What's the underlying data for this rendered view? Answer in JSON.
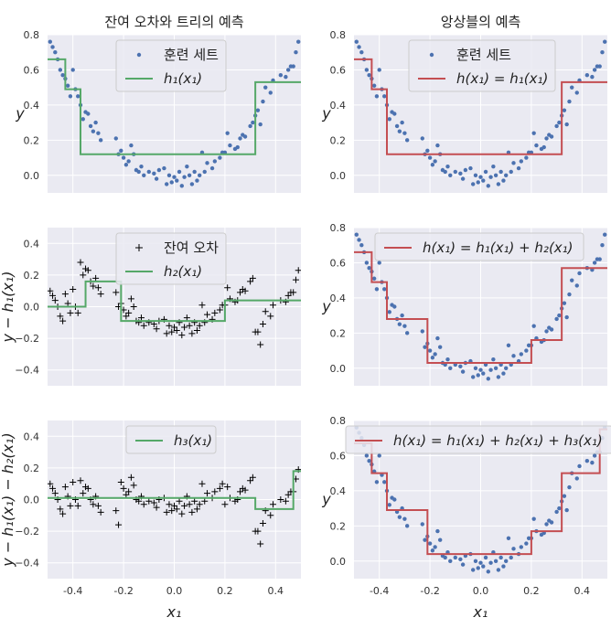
{
  "chart_data": [
    {
      "type": "scatter+step",
      "title": "잔여 오차와 트리의 예측",
      "xlabel": "",
      "ylabel": "y",
      "xlim": [
        -0.5,
        0.5
      ],
      "ylim": [
        -0.1,
        0.8
      ],
      "xticks": [
        -0.4,
        -0.2,
        0.0,
        0.2,
        0.4
      ],
      "yticks": [
        0.0,
        0.2,
        0.4,
        0.6,
        0.8
      ],
      "xtick_labels": [
        "-0.4",
        "-0.2",
        "0.0",
        "0.2",
        "0.4"
      ],
      "ytick_labels": [
        "0.0",
        "0.2",
        "0.4",
        "0.6",
        "0.8"
      ],
      "show_xtick_labels": false,
      "grid": true,
      "legend_position": "top-center",
      "points_style": "dot",
      "points_color": "#4c72b0",
      "points_source": "train",
      "line_color": "#55a868",
      "line_steps": [
        [
          -0.5,
          0.66
        ],
        [
          -0.43,
          0.49
        ],
        [
          -0.37,
          0.12
        ],
        [
          0.32,
          0.53
        ],
        [
          0.5,
          0.53
        ]
      ],
      "legend": [
        {
          "kind": "marker",
          "label": "훈련 세트"
        },
        {
          "kind": "line",
          "label": "h₁(x₁)"
        }
      ]
    },
    {
      "type": "scatter+step",
      "title": "앙상블의 예측",
      "xlabel": "",
      "ylabel": "y",
      "xlim": [
        -0.5,
        0.5
      ],
      "ylim": [
        -0.1,
        0.8
      ],
      "xticks": [
        -0.4,
        -0.2,
        0.0,
        0.2,
        0.4
      ],
      "yticks": [
        0.0,
        0.2,
        0.4,
        0.6,
        0.8
      ],
      "xtick_labels": [
        "-0.4",
        "-0.2",
        "0.0",
        "0.2",
        "0.4"
      ],
      "ytick_labels": [
        "0.0",
        "0.2",
        "0.4",
        "0.6",
        "0.8"
      ],
      "show_xtick_labels": false,
      "grid": true,
      "legend_position": "top-center",
      "points_style": "dot",
      "points_color": "#4c72b0",
      "points_source": "train",
      "line_color": "#c44e52",
      "line_steps": [
        [
          -0.5,
          0.66
        ],
        [
          -0.43,
          0.49
        ],
        [
          -0.37,
          0.12
        ],
        [
          0.32,
          0.53
        ],
        [
          0.5,
          0.53
        ]
      ],
      "legend": [
        {
          "kind": "marker",
          "label": "훈련 세트"
        },
        {
          "kind": "line",
          "label": "h(x₁) = h₁(x₁)"
        }
      ]
    },
    {
      "type": "scatter+step",
      "title": "",
      "xlabel": "",
      "ylabel": "y − h₁(x₁)",
      "xlim": [
        -0.5,
        0.5
      ],
      "ylim": [
        -0.5,
        0.5
      ],
      "xticks": [
        -0.4,
        -0.2,
        0.0,
        0.2,
        0.4
      ],
      "yticks": [
        -0.4,
        -0.2,
        0.0,
        0.2,
        0.4
      ],
      "xtick_labels": [
        "-0.4",
        "-0.2",
        "0.0",
        "0.2",
        "0.4"
      ],
      "ytick_labels": [
        "−0.4",
        "−0.2",
        "0.0",
        "0.2",
        "0.4"
      ],
      "show_xtick_labels": false,
      "grid": true,
      "legend_position": "top-center",
      "points_style": "plus",
      "points_color": "#000000",
      "points_source": "resid1",
      "line_color": "#55a868",
      "line_steps": [
        [
          -0.5,
          0.0
        ],
        [
          -0.35,
          0.16
        ],
        [
          -0.21,
          -0.09
        ],
        [
          0.2,
          0.04
        ],
        [
          0.5,
          0.04
        ]
      ],
      "legend": [
        {
          "kind": "plus",
          "label": "잔여 오차"
        },
        {
          "kind": "line",
          "label": "h₂(x₁)"
        }
      ]
    },
    {
      "type": "scatter+step",
      "title": "",
      "xlabel": "",
      "ylabel": "y",
      "xlim": [
        -0.5,
        0.5
      ],
      "ylim": [
        -0.1,
        0.8
      ],
      "xticks": [
        -0.4,
        -0.2,
        0.0,
        0.2,
        0.4
      ],
      "yticks": [
        0.0,
        0.2,
        0.4,
        0.6,
        0.8
      ],
      "xtick_labels": [
        "-0.4",
        "-0.2",
        "0.0",
        "0.2",
        "0.4"
      ],
      "ytick_labels": [
        "0.0",
        "0.2",
        "0.4",
        "0.6",
        "0.8"
      ],
      "show_xtick_labels": false,
      "grid": true,
      "legend_position": "top-center",
      "points_style": "dot",
      "points_color": "#4c72b0",
      "points_source": "train",
      "line_color": "#c44e52",
      "line_steps": [
        [
          -0.5,
          0.66
        ],
        [
          -0.43,
          0.49
        ],
        [
          -0.37,
          0.28
        ],
        [
          -0.21,
          0.03
        ],
        [
          0.2,
          0.16
        ],
        [
          0.32,
          0.57
        ],
        [
          0.5,
          0.57
        ]
      ],
      "legend": [
        {
          "kind": "line",
          "label": "h(x₁) = h₁(x₁) + h₂(x₁)"
        }
      ]
    },
    {
      "type": "scatter+step",
      "title": "",
      "xlabel": "x₁",
      "ylabel": "y − h₁(x₁) − h₂(x₁)",
      "xlim": [
        -0.5,
        0.5
      ],
      "ylim": [
        -0.5,
        0.5
      ],
      "xticks": [
        -0.4,
        -0.2,
        0.0,
        0.2,
        0.4
      ],
      "yticks": [
        -0.4,
        -0.2,
        0.0,
        0.2,
        0.4
      ],
      "xtick_labels": [
        "-0.4",
        "-0.2",
        "0.0",
        "0.2",
        "0.4"
      ],
      "ytick_labels": [
        "−0.4",
        "−0.2",
        "0.0",
        "0.2",
        "0.4"
      ],
      "show_xtick_labels": true,
      "grid": true,
      "legend_position": "top-center",
      "points_style": "plus",
      "points_color": "#000000",
      "points_source": "resid2",
      "line_color": "#55a868",
      "line_steps": [
        [
          -0.5,
          0.01
        ],
        [
          0.32,
          -0.06
        ],
        [
          0.47,
          0.18
        ],
        [
          0.5,
          0.18
        ]
      ],
      "legend": [
        {
          "kind": "line",
          "label": "h₃(x₁)"
        }
      ]
    },
    {
      "type": "scatter+step",
      "title": "",
      "xlabel": "x₁",
      "ylabel": "y",
      "xlim": [
        -0.5,
        0.5
      ],
      "ylim": [
        -0.1,
        0.8
      ],
      "xticks": [
        -0.4,
        -0.2,
        0.0,
        0.2,
        0.4
      ],
      "yticks": [
        0.0,
        0.2,
        0.4,
        0.6,
        0.8
      ],
      "xtick_labels": [
        "-0.4",
        "-0.2",
        "0.0",
        "0.2",
        "0.4"
      ],
      "ytick_labels": [
        "0.0",
        "0.2",
        "0.4",
        "0.6",
        "0.8"
      ],
      "show_xtick_labels": true,
      "grid": true,
      "legend_position": "top-center",
      "points_style": "dot",
      "points_color": "#4c72b0",
      "points_source": "train",
      "line_color": "#c44e52",
      "line_steps": [
        [
          -0.5,
          0.67
        ],
        [
          -0.43,
          0.5
        ],
        [
          -0.37,
          0.29
        ],
        [
          -0.21,
          0.04
        ],
        [
          0.2,
          0.17
        ],
        [
          0.32,
          0.5
        ],
        [
          0.47,
          0.75
        ],
        [
          0.5,
          0.75
        ]
      ],
      "legend": [
        {
          "kind": "line",
          "label": "h(x₁) = h₁(x₁) + h₂(x₁) + h₃(x₁)"
        }
      ]
    }
  ],
  "series_points": {
    "train": [
      [
        -0.49,
        0.76
      ],
      [
        -0.48,
        0.73
      ],
      [
        -0.47,
        0.7
      ],
      [
        -0.46,
        0.66
      ],
      [
        -0.45,
        0.6
      ],
      [
        -0.44,
        0.57
      ],
      [
        -0.43,
        0.55
      ],
      [
        -0.42,
        0.51
      ],
      [
        -0.41,
        0.45
      ],
      [
        -0.4,
        0.6
      ],
      [
        -0.39,
        0.49
      ],
      [
        -0.38,
        0.45
      ],
      [
        -0.37,
        0.4
      ],
      [
        -0.36,
        0.32
      ],
      [
        -0.35,
        0.36
      ],
      [
        -0.34,
        0.35
      ],
      [
        -0.33,
        0.28
      ],
      [
        -0.32,
        0.25
      ],
      [
        -0.31,
        0.3
      ],
      [
        -0.3,
        0.24
      ],
      [
        -0.29,
        0.2
      ],
      [
        -0.23,
        0.21
      ],
      [
        -0.22,
        0.12
      ],
      [
        -0.21,
        0.14
      ],
      [
        -0.2,
        0.1
      ],
      [
        -0.19,
        0.06
      ],
      [
        -0.18,
        0.08
      ],
      [
        -0.17,
        0.17
      ],
      [
        -0.16,
        0.12
      ],
      [
        -0.15,
        0.03
      ],
      [
        -0.14,
        0.02
      ],
      [
        -0.13,
        0.05
      ],
      [
        -0.12,
        0.0
      ],
      [
        -0.1,
        0.02
      ],
      [
        -0.08,
        0.01
      ],
      [
        -0.07,
        -0.02
      ],
      [
        -0.06,
        0.03
      ],
      [
        -0.04,
        0.04
      ],
      [
        -0.03,
        -0.05
      ],
      [
        -0.02,
        0.0
      ],
      [
        -0.01,
        -0.04
      ],
      [
        0.0,
        -0.01
      ],
      [
        0.01,
        -0.03
      ],
      [
        0.02,
        0.02
      ],
      [
        0.03,
        -0.06
      ],
      [
        0.04,
        -0.01
      ],
      [
        0.05,
        0.05
      ],
      [
        0.06,
        0.0
      ],
      [
        0.07,
        -0.05
      ],
      [
        0.08,
        0.02
      ],
      [
        0.09,
        -0.03
      ],
      [
        0.1,
        0.0
      ],
      [
        0.11,
        0.13
      ],
      [
        0.12,
        0.02
      ],
      [
        0.13,
        0.07
      ],
      [
        0.15,
        0.04
      ],
      [
        0.16,
        0.08
      ],
      [
        0.18,
        0.1
      ],
      [
        0.19,
        0.13
      ],
      [
        0.2,
        0.13
      ],
      [
        0.21,
        0.24
      ],
      [
        0.22,
        0.17
      ],
      [
        0.24,
        0.15
      ],
      [
        0.25,
        0.16
      ],
      [
        0.26,
        0.21
      ],
      [
        0.27,
        0.23
      ],
      [
        0.28,
        0.22
      ],
      [
        0.3,
        0.28
      ],
      [
        0.31,
        0.3
      ],
      [
        0.32,
        0.34
      ],
      [
        0.33,
        0.37
      ],
      [
        0.34,
        0.29
      ],
      [
        0.35,
        0.42
      ],
      [
        0.36,
        0.5
      ],
      [
        0.38,
        0.47
      ],
      [
        0.39,
        0.54
      ],
      [
        0.42,
        0.57
      ],
      [
        0.44,
        0.56
      ],
      [
        0.45,
        0.6
      ],
      [
        0.46,
        0.62
      ],
      [
        0.47,
        0.62
      ],
      [
        0.48,
        0.7
      ],
      [
        0.49,
        0.76
      ]
    ],
    "resid1": [
      [
        -0.49,
        0.1
      ],
      [
        -0.48,
        0.07
      ],
      [
        -0.47,
        0.04
      ],
      [
        -0.46,
        0.0
      ],
      [
        -0.45,
        -0.06
      ],
      [
        -0.44,
        -0.09
      ],
      [
        -0.43,
        0.08
      ],
      [
        -0.42,
        0.02
      ],
      [
        -0.41,
        -0.04
      ],
      [
        -0.4,
        0.11
      ],
      [
        -0.39,
        0.0
      ],
      [
        -0.38,
        -0.04
      ],
      [
        -0.37,
        0.28
      ],
      [
        -0.36,
        0.2
      ],
      [
        -0.35,
        0.24
      ],
      [
        -0.34,
        0.23
      ],
      [
        -0.33,
        0.16
      ],
      [
        -0.32,
        0.13
      ],
      [
        -0.31,
        0.18
      ],
      [
        -0.3,
        0.12
      ],
      [
        -0.29,
        0.08
      ],
      [
        -0.23,
        0.09
      ],
      [
        -0.22,
        0.0
      ],
      [
        -0.21,
        0.02
      ],
      [
        -0.2,
        -0.02
      ],
      [
        -0.19,
        -0.06
      ],
      [
        -0.18,
        -0.04
      ],
      [
        -0.17,
        0.05
      ],
      [
        -0.16,
        0.0
      ],
      [
        -0.15,
        -0.09
      ],
      [
        -0.14,
        -0.1
      ],
      [
        -0.13,
        -0.07
      ],
      [
        -0.12,
        -0.12
      ],
      [
        -0.1,
        -0.1
      ],
      [
        -0.08,
        -0.11
      ],
      [
        -0.07,
        -0.14
      ],
      [
        -0.06,
        -0.09
      ],
      [
        -0.04,
        -0.08
      ],
      [
        -0.03,
        -0.17
      ],
      [
        -0.02,
        -0.12
      ],
      [
        -0.01,
        -0.16
      ],
      [
        0.0,
        -0.13
      ],
      [
        0.01,
        -0.15
      ],
      [
        0.02,
        -0.1
      ],
      [
        0.03,
        -0.18
      ],
      [
        0.04,
        -0.13
      ],
      [
        0.05,
        -0.07
      ],
      [
        0.06,
        -0.12
      ],
      [
        0.07,
        -0.17
      ],
      [
        0.08,
        -0.1
      ],
      [
        0.09,
        -0.15
      ],
      [
        0.1,
        -0.12
      ],
      [
        0.11,
        0.01
      ],
      [
        0.12,
        -0.1
      ],
      [
        0.13,
        -0.05
      ],
      [
        0.15,
        -0.08
      ],
      [
        0.16,
        -0.04
      ],
      [
        0.18,
        -0.02
      ],
      [
        0.19,
        0.01
      ],
      [
        0.2,
        0.01
      ],
      [
        0.21,
        0.12
      ],
      [
        0.22,
        0.05
      ],
      [
        0.24,
        0.03
      ],
      [
        0.25,
        0.04
      ],
      [
        0.26,
        0.09
      ],
      [
        0.27,
        0.11
      ],
      [
        0.28,
        0.1
      ],
      [
        0.3,
        0.16
      ],
      [
        0.31,
        0.18
      ],
      [
        0.32,
        -0.16
      ],
      [
        0.33,
        -0.16
      ],
      [
        0.34,
        -0.24
      ],
      [
        0.35,
        -0.11
      ],
      [
        0.36,
        -0.03
      ],
      [
        0.38,
        -0.06
      ],
      [
        0.39,
        0.01
      ],
      [
        0.42,
        0.04
      ],
      [
        0.44,
        0.03
      ],
      [
        0.45,
        0.07
      ],
      [
        0.46,
        0.09
      ],
      [
        0.47,
        0.09
      ],
      [
        0.48,
        0.17
      ],
      [
        0.49,
        0.23
      ]
    ],
    "resid2": [
      [
        -0.49,
        0.1
      ],
      [
        -0.48,
        0.07
      ],
      [
        -0.47,
        0.04
      ],
      [
        -0.46,
        0.0
      ],
      [
        -0.45,
        -0.06
      ],
      [
        -0.44,
        -0.09
      ],
      [
        -0.43,
        0.08
      ],
      [
        -0.42,
        0.02
      ],
      [
        -0.41,
        -0.04
      ],
      [
        -0.4,
        0.11
      ],
      [
        -0.39,
        0.0
      ],
      [
        -0.38,
        -0.04
      ],
      [
        -0.37,
        0.12
      ],
      [
        -0.36,
        0.04
      ],
      [
        -0.35,
        0.08
      ],
      [
        -0.34,
        0.07
      ],
      [
        -0.33,
        0.0
      ],
      [
        -0.32,
        -0.03
      ],
      [
        -0.31,
        0.02
      ],
      [
        -0.3,
        -0.04
      ],
      [
        -0.29,
        -0.08
      ],
      [
        -0.23,
        -0.07
      ],
      [
        -0.22,
        -0.16
      ],
      [
        -0.21,
        0.11
      ],
      [
        -0.2,
        0.07
      ],
      [
        -0.19,
        0.03
      ],
      [
        -0.18,
        0.05
      ],
      [
        -0.17,
        0.14
      ],
      [
        -0.16,
        0.09
      ],
      [
        -0.15,
        0.0
      ],
      [
        -0.14,
        -0.01
      ],
      [
        -0.13,
        0.02
      ],
      [
        -0.12,
        -0.03
      ],
      [
        -0.1,
        -0.01
      ],
      [
        -0.08,
        -0.02
      ],
      [
        -0.07,
        -0.05
      ],
      [
        -0.06,
        0.0
      ],
      [
        -0.04,
        0.01
      ],
      [
        -0.03,
        -0.08
      ],
      [
        -0.02,
        -0.03
      ],
      [
        -0.01,
        -0.07
      ],
      [
        0.0,
        -0.04
      ],
      [
        0.01,
        -0.06
      ],
      [
        0.02,
        -0.01
      ],
      [
        0.03,
        -0.09
      ],
      [
        0.04,
        -0.04
      ],
      [
        0.05,
        0.02
      ],
      [
        0.06,
        -0.03
      ],
      [
        0.07,
        -0.08
      ],
      [
        0.08,
        -0.01
      ],
      [
        0.09,
        -0.06
      ],
      [
        0.1,
        -0.03
      ],
      [
        0.11,
        0.1
      ],
      [
        0.12,
        -0.01
      ],
      [
        0.13,
        0.04
      ],
      [
        0.15,
        0.01
      ],
      [
        0.16,
        0.05
      ],
      [
        0.18,
        0.07
      ],
      [
        0.19,
        0.1
      ],
      [
        0.2,
        -0.03
      ],
      [
        0.21,
        0.08
      ],
      [
        0.22,
        0.01
      ],
      [
        0.24,
        -0.01
      ],
      [
        0.25,
        0.0
      ],
      [
        0.26,
        0.05
      ],
      [
        0.27,
        0.07
      ],
      [
        0.28,
        0.06
      ],
      [
        0.3,
        0.12
      ],
      [
        0.31,
        0.14
      ],
      [
        0.32,
        -0.2
      ],
      [
        0.33,
        -0.2
      ],
      [
        0.34,
        -0.28
      ],
      [
        0.35,
        -0.15
      ],
      [
        0.36,
        -0.07
      ],
      [
        0.38,
        -0.1
      ],
      [
        0.39,
        -0.03
      ],
      [
        0.42,
        0.0
      ],
      [
        0.44,
        -0.01
      ],
      [
        0.45,
        0.03
      ],
      [
        0.46,
        0.05
      ],
      [
        0.47,
        0.05
      ],
      [
        0.48,
        0.13
      ],
      [
        0.49,
        0.19
      ]
    ]
  }
}
